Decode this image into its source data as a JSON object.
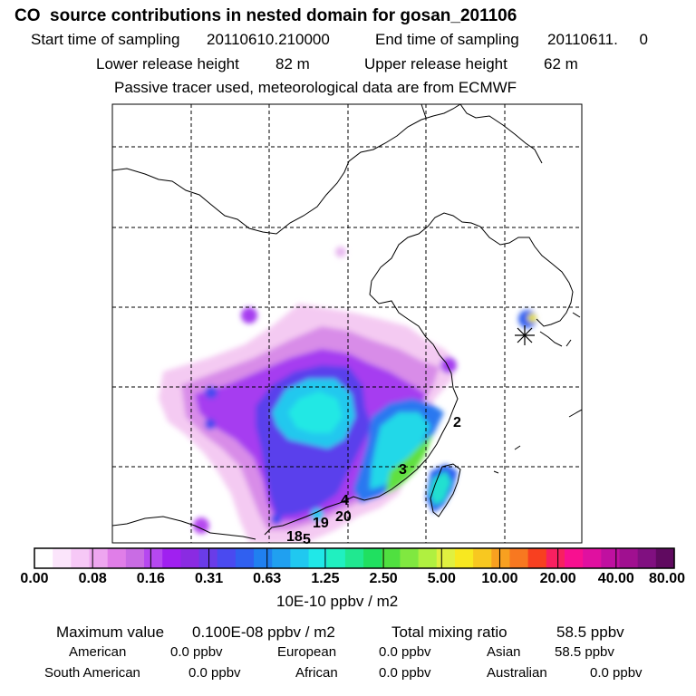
{
  "header": {
    "title": "CO  source contributions in nested domain for gosan_201106",
    "start_label": "Start time of sampling",
    "start_value": "20110610.210000",
    "end_label": "End time of sampling",
    "end_value": "20110611.     0",
    "lower_label": "Lower release height",
    "lower_value": "82 m",
    "upper_label": "Upper release height",
    "upper_value": "62 m",
    "note": "Passive tracer used, meteorological data are from ECMWF"
  },
  "map": {
    "trajectory_labels": [
      "2",
      "3",
      "4",
      "19",
      "20",
      "18",
      "5"
    ],
    "receptor_symbol": "asterisk-cross"
  },
  "colorbar": {
    "tick_labels": [
      "0.00",
      "0.08",
      "0.16",
      "0.31",
      "0.63",
      "1.25",
      "2.50",
      "5.00",
      "10.00",
      "20.00",
      "40.00",
      "80.00"
    ],
    "colors": [
      "#ffffff",
      "#fbe5fb",
      "#f6c8f6",
      "#eea6f0",
      "#e07ee8",
      "#c96ce4",
      "#b648f0",
      "#a020f0",
      "#8a2be2",
      "#6a3ce8",
      "#4a4af0",
      "#3060f0",
      "#2080f0",
      "#20a0f0",
      "#20c8f0",
      "#20e8e8",
      "#20f0c0",
      "#20e890",
      "#20e060",
      "#50e040",
      "#80e840",
      "#b0f040",
      "#e0f040",
      "#f8e820",
      "#f8c820",
      "#f8a020",
      "#f87820",
      "#f84020",
      "#f82060",
      "#f81090",
      "#e010a0",
      "#c010a0",
      "#a01090",
      "#801080",
      "#600a60"
    ],
    "unit": "10E-10 ppbv / m2"
  },
  "stats": {
    "max_label": "Maximum value",
    "max_value": "0.100E-08 ppbv / m2",
    "total_label": "Total mixing ratio",
    "total_value": "58.5 ppbv",
    "regions": [
      {
        "name": "American",
        "value": "0.0 ppbv"
      },
      {
        "name": "European",
        "value": "0.0 ppbv"
      },
      {
        "name": "Asian",
        "value": "58.5 ppbv"
      },
      {
        "name": "South American",
        "value": "0.0 ppbv"
      },
      {
        "name": "African",
        "value": "0.0 ppbv"
      },
      {
        "name": "Australian",
        "value": "0.0 ppbv"
      }
    ]
  }
}
